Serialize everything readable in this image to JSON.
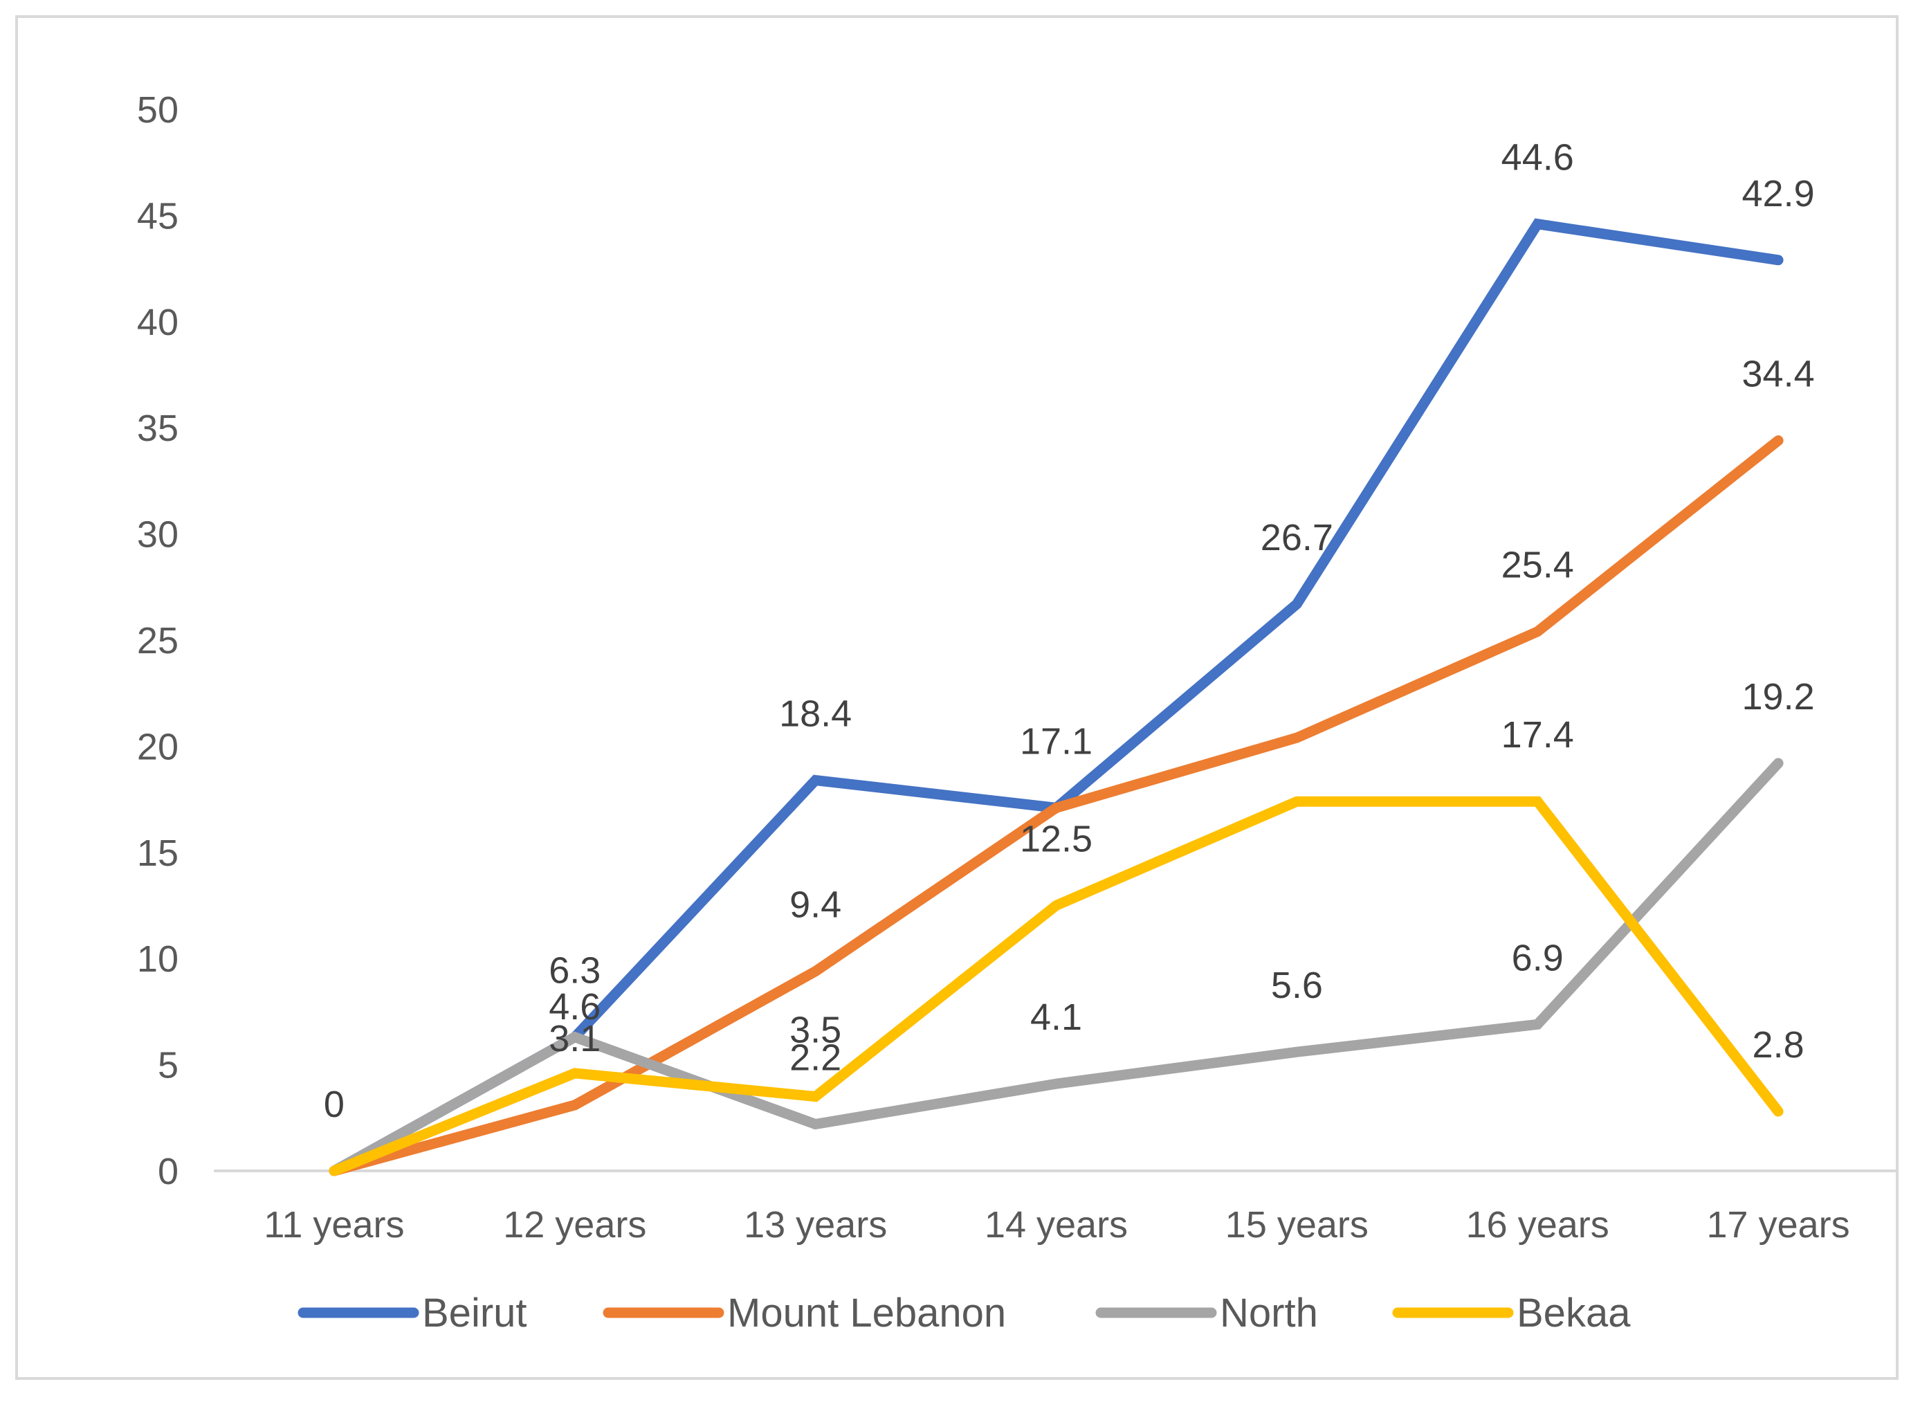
{
  "chart_data": {
    "type": "line",
    "title": "",
    "xlabel": "",
    "ylabel": "",
    "categories": [
      "11 years",
      "12 years",
      "13 years",
      "14 years",
      "15 years",
      "16 years",
      "17 years"
    ],
    "ylim": [
      0,
      50
    ],
    "yticks": [
      0,
      5,
      10,
      15,
      20,
      25,
      30,
      35,
      40,
      45,
      50
    ],
    "grid": false,
    "legend_position": "bottom",
    "series": [
      {
        "name": "Beirut",
        "color": "#4472c4",
        "values": [
          0,
          6.3,
          18.4,
          17.1,
          26.7,
          44.6,
          42.9
        ]
      },
      {
        "name": "Mount Lebanon",
        "color": "#ed7d31",
        "values": [
          0,
          3.1,
          9.4,
          17.1,
          20.4,
          25.4,
          34.4
        ]
      },
      {
        "name": "North",
        "color": "#a5a5a5",
        "values": [
          0,
          6.3,
          2.2,
          4.1,
          5.6,
          6.9,
          19.2
        ]
      },
      {
        "name": "Bekaa",
        "color": "#ffc000",
        "values": [
          0,
          4.6,
          3.5,
          12.5,
          17.4,
          17.4,
          2.8
        ]
      }
    ],
    "data_labels": [
      {
        "series": "Beirut",
        "category": "11 years",
        "text": "0"
      },
      {
        "series": "Beirut",
        "category": "12 years",
        "text": "6.3"
      },
      {
        "series": "Beirut",
        "category": "13 years",
        "text": "18.4"
      },
      {
        "series": "Beirut",
        "category": "14 years",
        "text": "17.1"
      },
      {
        "series": "Beirut",
        "category": "15 years",
        "text": "26.7"
      },
      {
        "series": "Beirut",
        "category": "16 years",
        "text": "44.6"
      },
      {
        "series": "Beirut",
        "category": "17 years",
        "text": "42.9"
      },
      {
        "series": "Mount Lebanon",
        "category": "12 years",
        "text": "3.1"
      },
      {
        "series": "Mount Lebanon",
        "category": "13 years",
        "text": "9.4"
      },
      {
        "series": "Mount Lebanon",
        "category": "16 years",
        "text": "25.4"
      },
      {
        "series": "Mount Lebanon",
        "category": "17 years",
        "text": "34.4"
      },
      {
        "series": "North",
        "category": "13 years",
        "text": "2.2"
      },
      {
        "series": "North",
        "category": "14 years",
        "text": "4.1"
      },
      {
        "series": "North",
        "category": "15 years",
        "text": "5.6"
      },
      {
        "series": "North",
        "category": "16 years",
        "text": "6.9"
      },
      {
        "series": "North",
        "category": "17 years",
        "text": "19.2"
      },
      {
        "series": "Bekaa",
        "category": "12 years",
        "text": "4.6"
      },
      {
        "series": "Bekaa",
        "category": "13 years",
        "text": "3.5"
      },
      {
        "series": "Bekaa",
        "category": "14 years",
        "text": "12.5"
      },
      {
        "series": "Bekaa",
        "category": "16 years",
        "text": "17.4"
      },
      {
        "series": "Bekaa",
        "category": "17 years",
        "text": "2.8"
      }
    ]
  },
  "colors": {
    "axis_line": "#d9d9d9",
    "frame": "#d9d9d9",
    "tick_text": "#595959",
    "label_text": "#404040"
  }
}
